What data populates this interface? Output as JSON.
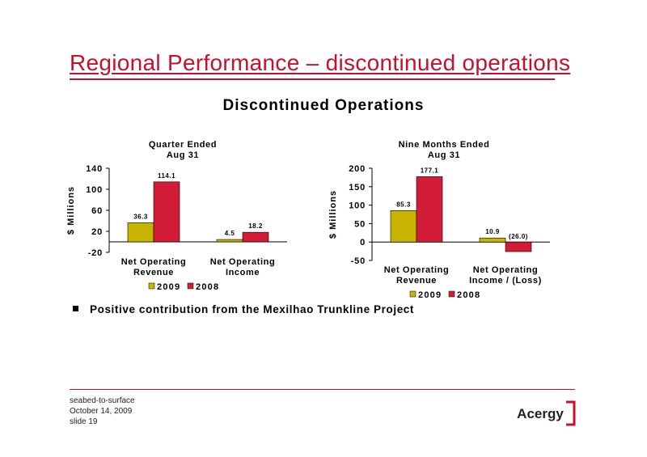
{
  "header": {
    "title": "Regional Performance – discontinued operations"
  },
  "subtitle": "Discontinued Operations",
  "colors": {
    "y2009": "#c8b400",
    "y2008": "#d31d36",
    "accent": "#c8102e"
  },
  "chart_data": [
    {
      "type": "bar",
      "title_line1": "Quarter Ended",
      "title_line2": "Aug 31",
      "ylabel": "$ Millions",
      "ylim": [
        -20,
        140
      ],
      "yticks": [
        "140",
        "100",
        "60",
        "20",
        "-20"
      ],
      "categories": [
        {
          "line1": "Net Operating",
          "line2": "Revenue"
        },
        {
          "line1": "Net Operating",
          "line2": "Income"
        }
      ],
      "series": [
        {
          "name": "2009",
          "values": [
            36.3,
            4.5
          ],
          "labels": [
            "36.3",
            "4.5"
          ]
        },
        {
          "name": "2008",
          "values": [
            114.1,
            18.2
          ],
          "labels": [
            "114.1",
            "18.2"
          ]
        }
      ],
      "legend": "bottom"
    },
    {
      "type": "bar",
      "title_line1": "Nine Months Ended",
      "title_line2": "Aug 31",
      "ylabel": "$ Millions",
      "ylim": [
        -50,
        200
      ],
      "yticks": [
        "200",
        "150",
        "100",
        "50",
        "0",
        "-50"
      ],
      "categories": [
        {
          "line1": "Net Operating",
          "line2": "Revenue"
        },
        {
          "line1": "Net Operating",
          "line2": "Income /  (Loss)"
        }
      ],
      "series": [
        {
          "name": "2009",
          "values": [
            85.3,
            10.9
          ],
          "labels": [
            "85.3",
            "10.9"
          ]
        },
        {
          "name": "2008",
          "values": [
            177.1,
            -26.0
          ],
          "labels": [
            "177.1",
            "(26.0)"
          ]
        }
      ],
      "legend": "bottom"
    }
  ],
  "bullets": [
    "Positive contribution from the Mexilhao Trunkline Project"
  ],
  "footer": {
    "line1": "seabed-to-surface",
    "line2": "October 14, 2009",
    "line3": "slide 19"
  },
  "logo": {
    "text": "Acergy",
    "icon": "acergy-bracket-logo"
  }
}
